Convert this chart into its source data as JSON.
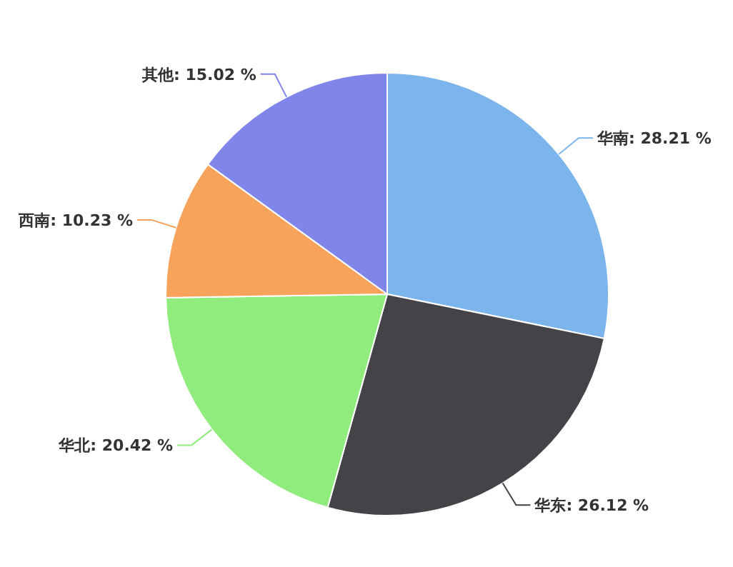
{
  "chart_data": {
    "type": "pie",
    "categories": [
      "华南",
      "华东",
      "华北",
      "西南",
      "其他"
    ],
    "values": [
      28.21,
      26.12,
      20.42,
      10.23,
      15.02
    ],
    "colors": [
      "#7cb5ec",
      "#434348",
      "#90ed7d",
      "#f7a35c",
      "#8085e9"
    ],
    "value_labels": [
      "28.21 %",
      "26.12 %",
      "20.42 %",
      "10.23 %",
      "15.02 %"
    ],
    "legend": false
  }
}
